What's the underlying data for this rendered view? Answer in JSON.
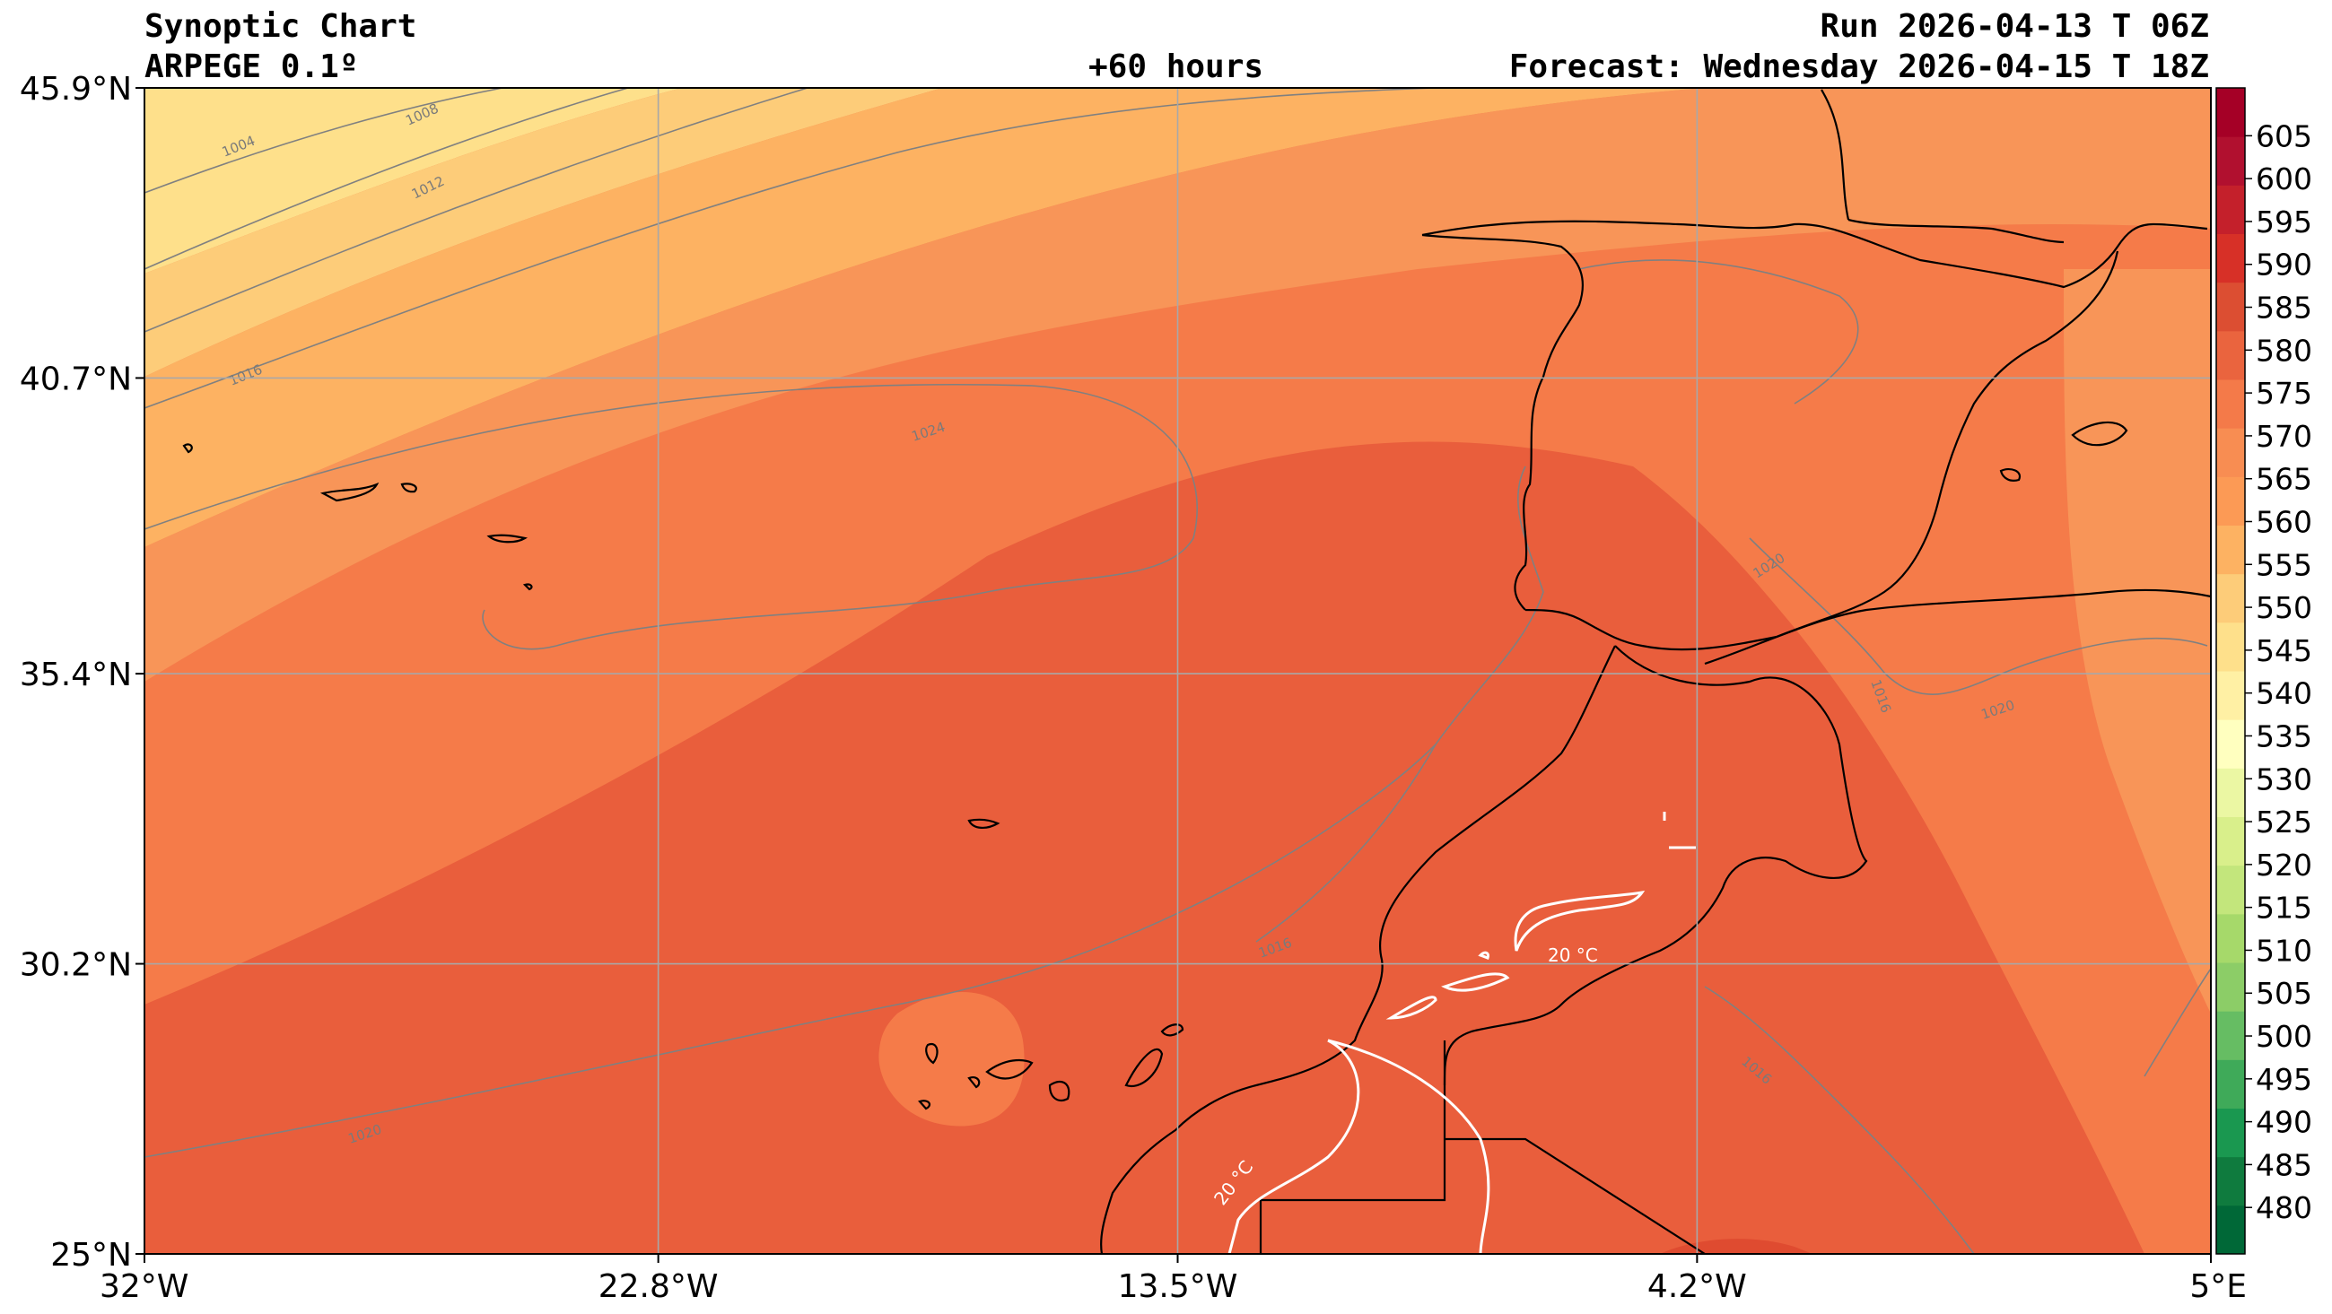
{
  "header": {
    "title": "Synoptic Chart",
    "model": "ARPEGE 0.1º",
    "lead": "+60 hours",
    "run": "Run 2026-04-13 T 06Z",
    "forecast": "Forecast: Wednesday 2026-04-15 T 18Z"
  },
  "map": {
    "lon_range": [
      -32,
      5
    ],
    "lat_range": [
      25,
      45.9
    ],
    "lon_ticks": [
      {
        "value": -32,
        "label": "32°W"
      },
      {
        "value": -22.8,
        "label": "22.8°W"
      },
      {
        "value": -13.5,
        "label": "13.5°W"
      },
      {
        "value": -4.2,
        "label": "4.2°W"
      },
      {
        "value": 5,
        "label": "5°E"
      }
    ],
    "lat_ticks": [
      {
        "value": 45.9,
        "label": "45.9°N"
      },
      {
        "value": 40.7,
        "label": "40.7°N"
      },
      {
        "value": 35.4,
        "label": "35.4°N"
      },
      {
        "value": 30.2,
        "label": "30.2°N"
      },
      {
        "value": 25,
        "label": "25°N"
      }
    ],
    "isobar_labels": [
      "1004",
      "1008",
      "1012",
      "1016",
      "1024",
      "1020",
      "1016",
      "1020",
      "1020",
      "1016",
      "1016"
    ],
    "temperature_labels": [
      "20 °C",
      "20 °C"
    ]
  },
  "colorbar": {
    "ticks": [
      "480",
      "485",
      "490",
      "495",
      "500",
      "505",
      "510",
      "515",
      "520",
      "525",
      "530",
      "535",
      "540",
      "545",
      "550",
      "555",
      "560",
      "565",
      "570",
      "575",
      "580",
      "585",
      "590",
      "595",
      "600",
      "605"
    ],
    "colors": [
      "#006837",
      "#0f7b3e",
      "#1a9850",
      "#3faa59",
      "#66bd63",
      "#8ccd67",
      "#a6d96a",
      "#c3e67c",
      "#d9ef8b",
      "#ebf7a3",
      "#ffffbf",
      "#fff0a4",
      "#fee08b",
      "#fdcc79",
      "#fdb262",
      "#fc9a55",
      "#f88d52",
      "#f47a49",
      "#ea643e",
      "#dc4e32",
      "#d73027",
      "#c4202b",
      "#b1102f",
      "#a50026"
    ]
  }
}
